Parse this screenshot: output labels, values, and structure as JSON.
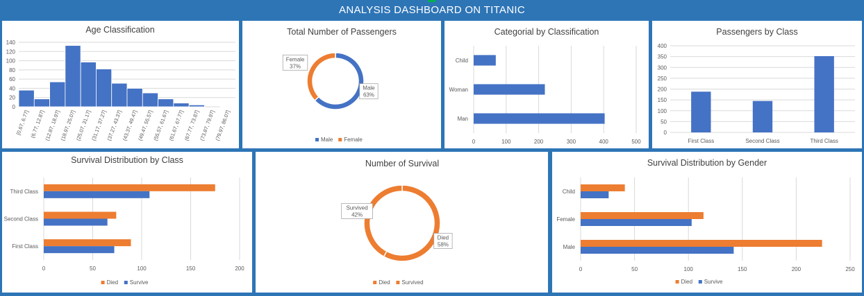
{
  "dashboard": {
    "title": "ANALYSIS DASHBOARD ON TITANIC"
  },
  "colors": {
    "blue": "#4472c4",
    "orange": "#ed7d31",
    "grid": "#d9d9d9",
    "axis_text": "#595959",
    "title_text": "#404040"
  },
  "chart_data": [
    {
      "id": "age",
      "type": "bar",
      "title": "Age Classification",
      "categories": [
        "[0.67, 6.77]",
        "(6.77, 12.87]",
        "(12.87, 18.97]",
        "(18.97, 25.07]",
        "(25.07, 31.17]",
        "(31.17, 37.27]",
        "(37.27, 43.37]",
        "(43.37, 49.47]",
        "(49.47, 55.57]",
        "(55.57, 61.67]",
        "(61.67, 67.77]",
        "(67.77, 73.87]",
        "(73.87, 79.97]",
        "(79.97, 86.07]"
      ],
      "values": [
        36,
        17,
        54,
        133,
        97,
        82,
        51,
        40,
        30,
        17,
        8,
        4,
        0,
        1
      ],
      "ylim": [
        0,
        140
      ],
      "yticks": [
        0,
        20,
        40,
        60,
        80,
        100,
        120,
        140
      ],
      "grid": true
    },
    {
      "id": "passengers",
      "type": "pie",
      "title": "Total Number of Passengers",
      "labels": [
        "Male",
        "Female"
      ],
      "values": [
        63,
        37
      ],
      "data_labels": [
        [
          "Male",
          "63%"
        ],
        [
          "Female",
          "37%"
        ]
      ],
      "legend": [
        "Male",
        "Female"
      ],
      "legend_position": "bottom"
    },
    {
      "id": "category",
      "type": "bar",
      "orientation": "horizontal",
      "title": "Categorial  by  Classification",
      "categories": [
        "Man",
        "Woman",
        "Child"
      ],
      "values": [
        403,
        219,
        68
      ],
      "xlim": [
        0,
        500
      ],
      "xticks": [
        0,
        100,
        200,
        300,
        400,
        500
      ],
      "grid": true
    },
    {
      "id": "pclass",
      "type": "bar",
      "title": "Passengers by Class",
      "categories": [
        "First Class",
        "Second Class",
        "Third Class"
      ],
      "values": [
        188,
        145,
        352
      ],
      "ylim": [
        0,
        400
      ],
      "yticks": [
        0,
        50,
        100,
        150,
        200,
        250,
        300,
        350,
        400
      ],
      "grid": true
    },
    {
      "id": "survival_class",
      "type": "bar",
      "orientation": "horizontal",
      "title": "Survival Distribution by Class",
      "categories": [
        "First Class",
        "Second Class",
        "Third Class"
      ],
      "series": [
        {
          "name": "Died",
          "values": [
            89,
            74,
            175
          ]
        },
        {
          "name": "Survive",
          "values": [
            72,
            65,
            108
          ]
        }
      ],
      "xlim": [
        0,
        200
      ],
      "xticks": [
        0,
        50,
        100,
        150,
        200
      ],
      "grid": true,
      "legend_position": "bottom"
    },
    {
      "id": "survival",
      "type": "pie",
      "title": "Number of Survival",
      "labels": [
        "Died",
        "Survived"
      ],
      "values": [
        58,
        42
      ],
      "data_labels": [
        [
          "Died",
          "58%"
        ],
        [
          "Survived",
          "42%"
        ]
      ],
      "legend": [
        "Died",
        "Survived"
      ],
      "legend_position": "bottom"
    },
    {
      "id": "survival_gender",
      "type": "bar",
      "orientation": "horizontal",
      "title": "Survival Distribution by Gender",
      "categories": [
        "Male",
        "Female",
        "Child"
      ],
      "series": [
        {
          "name": "Died",
          "values": [
            224,
            114,
            41
          ]
        },
        {
          "name": "Survive",
          "values": [
            142,
            103,
            26
          ]
        }
      ],
      "xlim": [
        0,
        250
      ],
      "xticks": [
        0,
        50,
        100,
        150,
        200,
        250
      ],
      "grid": true,
      "legend_position": "bottom"
    }
  ]
}
